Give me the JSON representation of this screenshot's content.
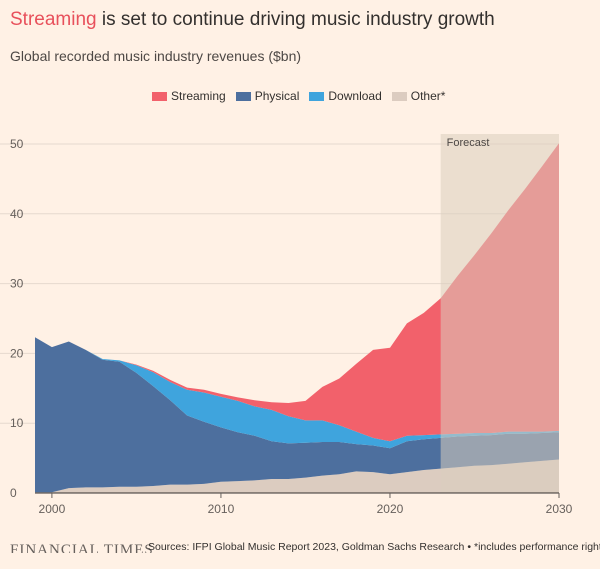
{
  "header": {
    "title_highlight": "Streaming",
    "title_rest": " is set to continue driving music industry growth",
    "subtitle": "Global recorded music industry revenues ($bn)"
  },
  "colors": {
    "background": "#fff1e5",
    "streaming": "#f2616b",
    "physical": "#4d6f9e",
    "download": "#3fa4dd",
    "other": "#dcccc0",
    "forecast_band": "#dbcdbd",
    "highlight_text": "#e8505b"
  },
  "footer": {
    "logo": "FINANCIAL TIMES",
    "source": "Sources: IFPI Global Music Report 2023, Goldman Sachs Research",
    "bullet": "•",
    "note": "*includes performance rights"
  },
  "chart_data": {
    "type": "area",
    "stacked": true,
    "legend_position": "top",
    "grid": true,
    "xlim": [
      1999,
      2030
    ],
    "ylim": [
      0,
      50
    ],
    "x_ticks": [
      2000,
      2010,
      2020,
      2030
    ],
    "y_ticks": [
      0,
      10,
      20,
      30,
      40,
      50
    ],
    "annotation": {
      "label": "Forecast",
      "x_start": 2023,
      "x_end": 2030
    },
    "x": [
      1999,
      2000,
      2001,
      2002,
      2003,
      2004,
      2005,
      2006,
      2007,
      2008,
      2009,
      2010,
      2011,
      2012,
      2013,
      2014,
      2015,
      2016,
      2017,
      2018,
      2019,
      2020,
      2021,
      2022,
      2023,
      2024,
      2025,
      2026,
      2027,
      2028,
      2029,
      2030
    ],
    "series": [
      {
        "name": "Other*",
        "color": "#dcccc0",
        "values": [
          0.1,
          0.1,
          0.7,
          0.8,
          0.8,
          0.9,
          0.9,
          1.0,
          1.2,
          1.2,
          1.3,
          1.6,
          1.7,
          1.8,
          2.0,
          2.0,
          2.2,
          2.5,
          2.7,
          3.1,
          3.0,
          2.7,
          3.0,
          3.3,
          3.5,
          3.7,
          3.9,
          4.0,
          4.2,
          4.4,
          4.6,
          4.8
        ]
      },
      {
        "name": "Physical",
        "color": "#4d6f9e",
        "values": [
          22.2,
          20.8,
          21.0,
          19.7,
          18.3,
          17.9,
          16.3,
          14.3,
          12.1,
          9.9,
          8.9,
          7.8,
          7.0,
          6.4,
          5.4,
          5.1,
          5.0,
          4.8,
          4.6,
          3.9,
          3.8,
          3.7,
          4.4,
          4.4,
          4.4,
          4.4,
          4.3,
          4.3,
          4.3,
          4.1,
          4.0,
          3.9
        ]
      },
      {
        "name": "Download",
        "color": "#3fa4dd",
        "values": [
          0,
          0,
          0,
          0,
          0.1,
          0.2,
          1.1,
          2.0,
          2.6,
          3.7,
          4.2,
          4.4,
          4.5,
          4.2,
          4.5,
          3.9,
          3.2,
          3.1,
          2.4,
          1.8,
          1.1,
          1.0,
          0.8,
          0.6,
          0.5,
          0.4,
          0.4,
          0.3,
          0.3,
          0.3,
          0.2,
          0.2
        ]
      },
      {
        "name": "Streaming",
        "color": "#f2616b",
        "values": [
          0,
          0,
          0,
          0,
          0,
          0,
          0.1,
          0.2,
          0.3,
          0.3,
          0.4,
          0.4,
          0.5,
          0.9,
          1.1,
          1.9,
          2.8,
          4.8,
          6.7,
          9.7,
          12.6,
          13.4,
          16.1,
          17.5,
          19.5,
          22.6,
          25.5,
          28.6,
          31.7,
          34.8,
          38.0,
          41.2
        ]
      }
    ]
  }
}
